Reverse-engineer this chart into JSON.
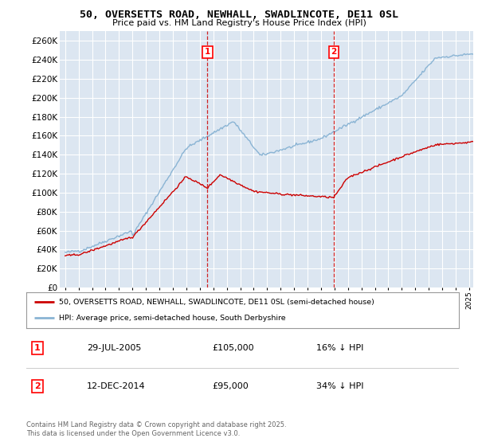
{
  "title_line1": "50, OVERSETTS ROAD, NEWHALL, SWADLINCOTE, DE11 0SL",
  "title_line2": "Price paid vs. HM Land Registry's House Price Index (HPI)",
  "ylim": [
    0,
    270000
  ],
  "ytick_step": 20000,
  "background_color": "#ffffff",
  "plot_bg_color": "#dce6f1",
  "grid_color": "#ffffff",
  "hpi_color": "#8ab4d4",
  "price_color": "#cc0000",
  "marker1_x": 2005.57,
  "marker2_x": 2014.95,
  "marker1_price": 105000,
  "marker2_price": 95000,
  "marker1_date": "29-JUL-2005",
  "marker2_date": "12-DEC-2014",
  "marker1_hpi_diff": "16% ↓ HPI",
  "marker2_hpi_diff": "34% ↓ HPI",
  "legend_label1": "50, OVERSETTS ROAD, NEWHALL, SWADLINCOTE, DE11 0SL (semi-detached house)",
  "legend_label2": "HPI: Average price, semi-detached house, South Derbyshire",
  "footnote": "Contains HM Land Registry data © Crown copyright and database right 2025.\nThis data is licensed under the Open Government Licence v3.0.",
  "xstart": 1995,
  "xend": 2025
}
